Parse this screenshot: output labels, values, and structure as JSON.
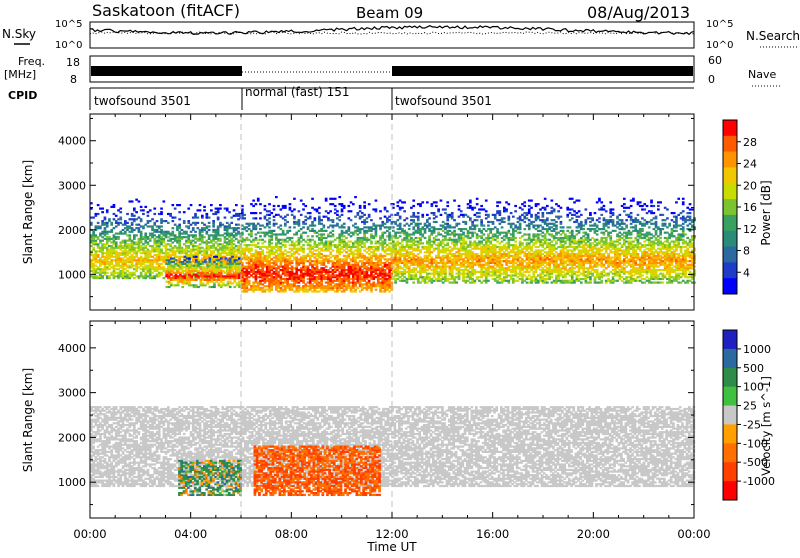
{
  "header": {
    "station": "Saskatoon (fitACF)",
    "beam": "Beam 09",
    "date": "08/Aug/2013"
  },
  "noise_panel": {
    "left_label": "N.Sky",
    "right_label": "N.Search",
    "left_ticks": [
      "10^5",
      "10^0"
    ],
    "right_ticks": [
      "10^5",
      "10^0"
    ]
  },
  "freq_panel": {
    "left_label_1": "Freq.",
    "left_label_2": "[MHz]",
    "right_label": "Nave",
    "left_ticks": [
      "18",
      "8"
    ],
    "right_ticks": [
      "60",
      "0"
    ]
  },
  "cpid": {
    "label": "CPID",
    "segments": [
      {
        "name": "twofsound 3501",
        "start_h": 0,
        "end_h": 6
      },
      {
        "name": "normal (fast) 151",
        "start_h": 6,
        "end_h": 12
      },
      {
        "name": "twofsound 3501",
        "start_h": 12,
        "end_h": 24
      }
    ]
  },
  "power_scale": {
    "label": "Power [dB]",
    "ticks": [
      "28",
      "24",
      "20",
      "16",
      "12",
      "8",
      "4"
    ],
    "colors": [
      "#ff0000",
      "#ff5a00",
      "#ff9400",
      "#f0c800",
      "#c8dc00",
      "#7ac430",
      "#3aa060",
      "#2a8c78",
      "#2a6aa0",
      "#1e3cc8",
      "#0000ff"
    ]
  },
  "velocity_scale": {
    "label": "Velocity [m s^-1]",
    "ticks": [
      "1000",
      "500",
      "100",
      "25",
      "-25",
      "-100",
      "-500",
      "-1000"
    ],
    "colors": [
      "#2020c0",
      "#2a6aa0",
      "#2e8c4a",
      "#40c040",
      "#c8c8c8",
      "#ffa000",
      "#ff7000",
      "#ff4000",
      "#ff0000"
    ]
  },
  "y_axis": {
    "label": "Slant Range [km]",
    "ticks": [
      "1000",
      "2000",
      "3000",
      "4000"
    ]
  },
  "x_axis": {
    "label": "Time UT",
    "ticks": [
      "00:00",
      "04:00",
      "08:00",
      "12:00",
      "16:00",
      "20:00",
      "00:00"
    ]
  },
  "chart_data": [
    {
      "type": "heatmap",
      "title": "Power",
      "xlabel": "Time UT",
      "ylabel": "Slant Range [km]",
      "xlim_hours": [
        0,
        24
      ],
      "ylim_km": [
        200,
        4600
      ],
      "colorbar": {
        "label": "Power [dB]",
        "range": [
          0,
          30
        ]
      },
      "echo_bands": [
        {
          "t0": 0.0,
          "t1": 6.0,
          "range_km": [
            900,
            2700
          ],
          "peak_km": 1300,
          "peak_db": 22
        },
        {
          "t0": 3.0,
          "t1": 6.0,
          "range_km": [
            700,
            1400
          ],
          "peak_km": 950,
          "peak_db": 30
        },
        {
          "t0": 6.0,
          "t1": 12.0,
          "range_km": [
            600,
            2900
          ],
          "peak_km": 1000,
          "peak_db": 30
        },
        {
          "t0": 12.0,
          "t1": 24.0,
          "range_km": [
            800,
            2700
          ],
          "peak_km": 1300,
          "peak_db": 24
        }
      ]
    },
    {
      "type": "heatmap",
      "title": "Velocity",
      "xlabel": "Time UT",
      "ylabel": "Slant Range [km]",
      "xlim_hours": [
        0,
        24
      ],
      "ylim_km": [
        200,
        4600
      ],
      "colorbar": {
        "label": "Velocity [m s^-1]",
        "range": [
          -1000,
          1000
        ]
      },
      "echo_bands": [
        {
          "t0": 0.0,
          "t1": 24.0,
          "range_km": [
            900,
            2700
          ],
          "velocity": 0,
          "note": "ground scatter"
        },
        {
          "t0": 3.5,
          "t1": 6.0,
          "range_km": [
            700,
            1500
          ],
          "velocity": 100
        },
        {
          "t0": 6.5,
          "t1": 11.5,
          "range_km": [
            700,
            1800
          ],
          "velocity": -500
        }
      ]
    }
  ]
}
